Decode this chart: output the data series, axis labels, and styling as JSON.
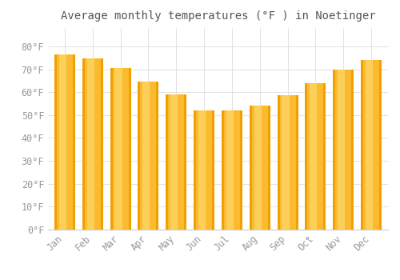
{
  "title": "Average monthly temperatures (°F ) in Noetinger",
  "months": [
    "Jan",
    "Feb",
    "Mar",
    "Apr",
    "May",
    "Jun",
    "Jul",
    "Aug",
    "Sep",
    "Oct",
    "Nov",
    "Dec"
  ],
  "values": [
    76.5,
    74.8,
    70.5,
    64.5,
    59.0,
    52.0,
    52.0,
    54.0,
    58.5,
    64.0,
    70.0,
    74.2
  ],
  "bar_color_main": "#FBBA2F",
  "bar_color_light": "#FDD96A",
  "bar_color_dark": "#F0A000",
  "background_color": "#FFFFFF",
  "grid_color": "#DDDDDD",
  "text_color": "#999999",
  "title_color": "#555555",
  "ylim": [
    0,
    88
  ],
  "yticks": [
    0,
    10,
    20,
    30,
    40,
    50,
    60,
    70,
    80
  ],
  "title_fontsize": 10,
  "tick_fontsize": 8.5,
  "bar_width": 0.75
}
